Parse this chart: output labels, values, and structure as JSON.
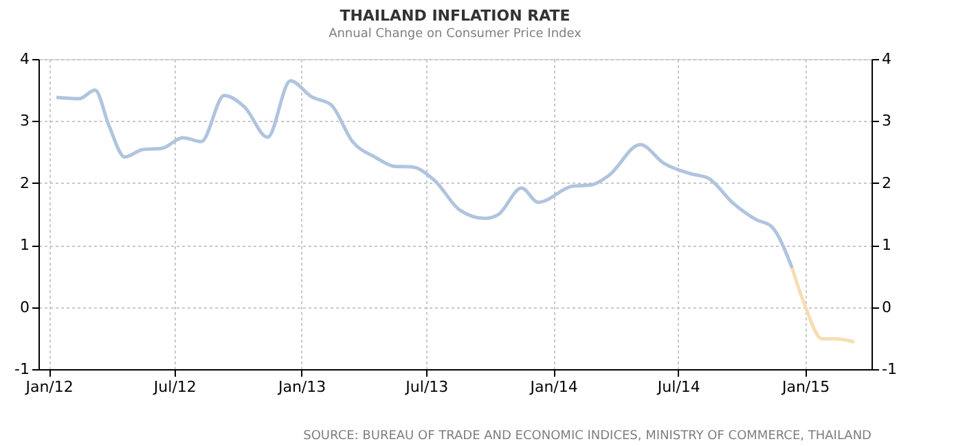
{
  "chart_data": {
    "type": "line",
    "title": "THAILAND INFLATION RATE",
    "subtitle": "Annual Change on Consumer Price Index",
    "annotations": [
      "SOURCE: BUREAU OF TRADE AND ECONOMIC INDICES, MINISTRY OF COMMERCE, THAILAND"
    ],
    "series": [
      {
        "color": "#b0c4de",
        "x": [
          "2012-01-12",
          "2012-02-14",
          "2012-03-08",
          "2012-03-28",
          "2012-04-20",
          "2012-05-16",
          "2012-06-13",
          "2012-07-13",
          "2012-08-09",
          "2012-09-11",
          "2012-10-11",
          "2012-11-13",
          "2012-12-16",
          "2013-01-16",
          "2013-02-13",
          "2013-03-16",
          "2013-04-19",
          "2013-05-16",
          "2013-06-10",
          "2013-07-13",
          "2013-08-19",
          "2013-09-24",
          "2013-10-13",
          "2013-11-16",
          "2013-12-10",
          "2014-01-29",
          "2014-02-25",
          "2014-03-22",
          "2014-05-07",
          "2014-06-10",
          "2014-07-19",
          "2014-08-13",
          "2014-09-19",
          "2014-10-22",
          "2014-11-13",
          "2014-12-13"
        ],
        "values": [
          3.38,
          3.36,
          3.5,
          2.93,
          2.42,
          2.54,
          2.56,
          2.73,
          2.67,
          3.41,
          3.22,
          2.74,
          3.65,
          3.39,
          3.26,
          2.67,
          2.41,
          2.27,
          2.26,
          2.04,
          1.56,
          1.43,
          1.49,
          1.92,
          1.69,
          1.95,
          1.97,
          2.12,
          2.62,
          2.32,
          2.15,
          2.08,
          1.67,
          1.41,
          1.3,
          0.63
        ]
      },
      {
        "color": "#f5deb3",
        "x": [
          "2014-12-13",
          "2015-01-01",
          "2015-01-25",
          "2015-02-13",
          "2015-03-13"
        ],
        "values": [
          0.63,
          0.01,
          -0.51,
          -0.51,
          -0.56
        ]
      }
    ],
    "xlim": [
      "2011-12-17",
      "2015-04-07"
    ],
    "xticks": [
      {
        "value": "2012-01-01",
        "label": "Jan/12"
      },
      {
        "value": "2012-07-01",
        "label": "Jul/12"
      },
      {
        "value": "2013-01-01",
        "label": "Jan/13"
      },
      {
        "value": "2013-07-01",
        "label": "Jul/13"
      },
      {
        "value": "2014-01-01",
        "label": "Jan/14"
      },
      {
        "value": "2014-07-01",
        "label": "Jul/14"
      },
      {
        "value": "2015-01-01",
        "label": "Jan/15"
      }
    ],
    "ylim": [
      -1,
      4
    ],
    "yticks": [
      -1,
      0,
      1,
      2,
      3,
      4
    ],
    "y2lim": [
      -1,
      4
    ],
    "y2ticks": [
      -1,
      0,
      1,
      2,
      3,
      4
    ],
    "grid": true,
    "legend": false
  }
}
